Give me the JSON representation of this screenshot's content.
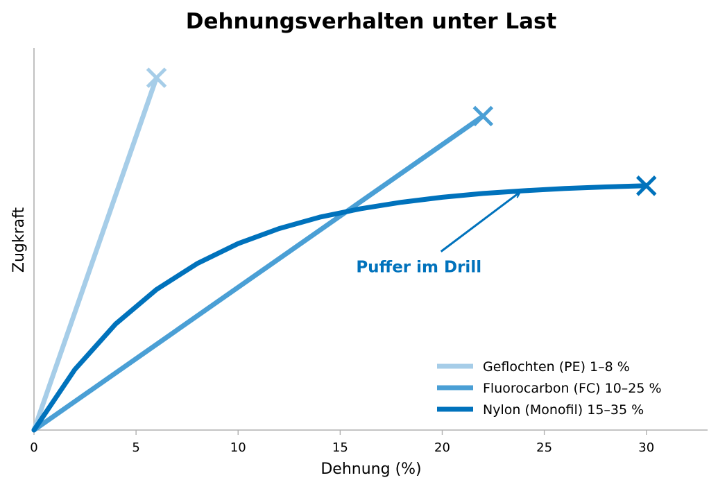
{
  "chart_data": {
    "type": "line",
    "title": "Dehnungsverhalten unter Last",
    "xlabel": "Dehnung (%)",
    "ylabel": "Zugkraft",
    "xlim": [
      0,
      33
    ],
    "ylim": [
      0,
      1.0
    ],
    "x_ticks": [
      "0",
      "5",
      "10",
      "15",
      "20",
      "25",
      "30"
    ],
    "y_ticks_shown": false,
    "grid": false,
    "legend_position": "bottom-right",
    "series": [
      {
        "name": "Geflochten (PE)  1–8 %",
        "color": "#a6cde8",
        "end_marker": "x",
        "x": [
          0,
          6
        ],
        "y": [
          0,
          0.92
        ]
      },
      {
        "name": "Fluorocarbon (FC)  10–25 %",
        "color": "#4a9fd5",
        "end_marker": "x",
        "x": [
          0,
          22
        ],
        "y": [
          0,
          0.82
        ]
      },
      {
        "name": "Nylon (Monofil)  15–35 %",
        "color": "#0072bc",
        "end_marker": "x",
        "x": [
          0,
          2,
          4,
          6,
          8,
          10,
          12,
          14,
          16,
          18,
          20,
          22,
          24,
          26,
          28,
          30
        ],
        "y": [
          0,
          0.158,
          0.277,
          0.367,
          0.435,
          0.487,
          0.526,
          0.556,
          0.578,
          0.595,
          0.608,
          0.618,
          0.625,
          0.631,
          0.635,
          0.638
        ]
      }
    ],
    "annotations": [
      {
        "text": "Puffer im Drill",
        "color": "#0072bc",
        "arrow_to": {
          "x": 23.8,
          "y": 0.621
        },
        "text_at": {
          "x": 19.6,
          "y": 0.43
        }
      }
    ]
  }
}
